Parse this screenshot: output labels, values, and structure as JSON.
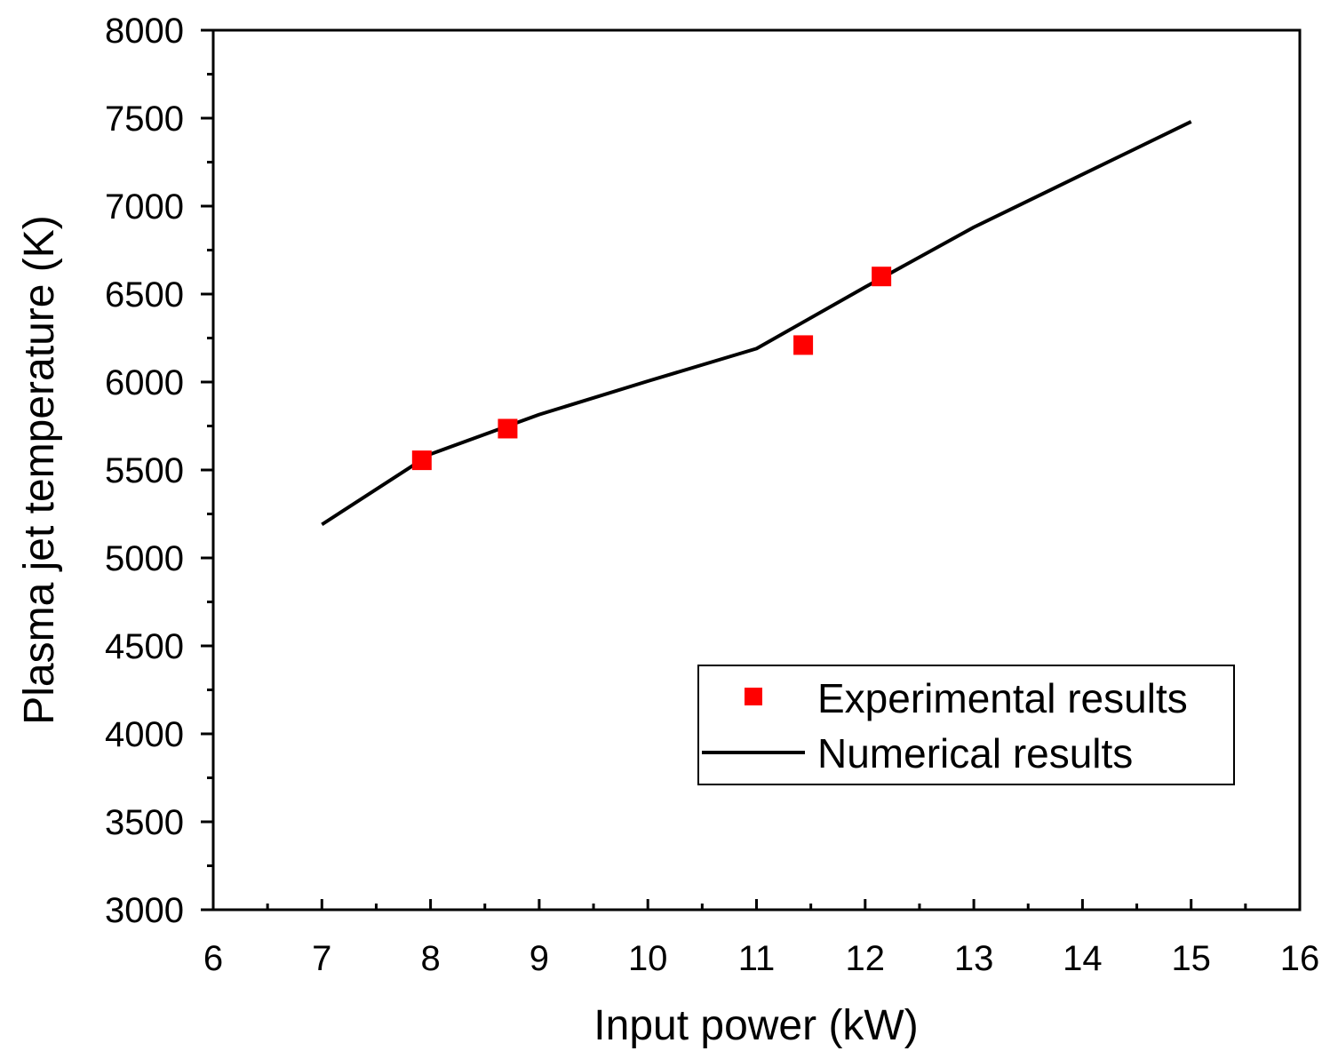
{
  "chart_data": {
    "type": "line",
    "title": "",
    "xlabel": "Input power (kW)",
    "ylabel": "Plasma jet temperature (K)",
    "xlim": [
      6,
      16
    ],
    "ylim": [
      3000,
      8000
    ],
    "x_ticks": [
      6,
      7,
      8,
      9,
      10,
      11,
      12,
      13,
      14,
      15,
      16
    ],
    "y_ticks": [
      3000,
      3500,
      4000,
      4500,
      5000,
      5500,
      6000,
      6500,
      7000,
      7500,
      8000
    ],
    "x_tick_labels": [
      "6",
      "7",
      "8",
      "9",
      "10",
      "11",
      "12",
      "13",
      "14",
      "15",
      "16"
    ],
    "y_tick_labels": [
      "3000",
      "3500",
      "4000",
      "4500",
      "5000",
      "5500",
      "6000",
      "6500",
      "7000",
      "7500",
      "8000"
    ],
    "legend_position": "lower-right",
    "grid": false,
    "series": [
      {
        "name": "Experimental results",
        "kind": "scatter",
        "marker": "square",
        "color": "#ff0000",
        "x": [
          7.92,
          8.71,
          11.43,
          12.15
        ],
        "y": [
          5555,
          5735,
          6210,
          6600
        ]
      },
      {
        "name": "Numerical results",
        "kind": "line",
        "color": "#000000",
        "x": [
          7,
          8,
          9,
          10,
          11,
          12,
          13,
          14,
          15
        ],
        "y": [
          5190,
          5590,
          5815,
          6005,
          6190,
          6540,
          6880,
          7180,
          7480
        ]
      }
    ]
  }
}
